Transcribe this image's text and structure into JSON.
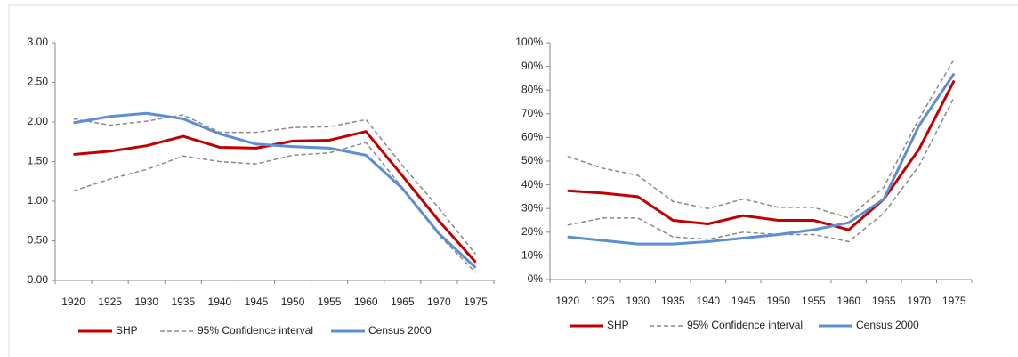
{
  "chart_data": [
    {
      "type": "line",
      "categories": [
        "1920",
        "1925",
        "1930",
        "1935",
        "1940",
        "1945",
        "1950",
        "1955",
        "1960",
        "1965",
        "1970",
        "1975"
      ],
      "ylim": [
        0,
        3
      ],
      "yticks": [
        {
          "value": 0,
          "label": "0.00"
        },
        {
          "value": 0.5,
          "label": "0.50"
        },
        {
          "value": 1,
          "label": "1.00"
        },
        {
          "value": 1.5,
          "label": "1.50"
        },
        {
          "value": 2,
          "label": "2.00"
        },
        {
          "value": 2.5,
          "label": "2.50"
        },
        {
          "value": 3,
          "label": "3.00"
        }
      ],
      "series": [
        {
          "name": "SHP",
          "color": "#c00000",
          "values": [
            1.59,
            1.63,
            1.7,
            1.82,
            1.68,
            1.67,
            1.76,
            1.77,
            1.88,
            1.32,
            0.75,
            0.23
          ]
        },
        {
          "name": "95% Confidence interval",
          "color": "#888888",
          "upper": [
            2.04,
            1.96,
            2.01,
            2.09,
            1.87,
            1.87,
            1.93,
            1.94,
            2.03,
            1.45,
            0.91,
            0.33
          ],
          "lower": [
            1.13,
            1.28,
            1.4,
            1.57,
            1.5,
            1.47,
            1.58,
            1.61,
            1.74,
            1.17,
            0.57,
            0.1
          ]
        },
        {
          "name": "Census 2000",
          "color": "#5b8fd1",
          "values": [
            1.99,
            2.07,
            2.11,
            2.04,
            1.85,
            1.72,
            1.69,
            1.67,
            1.58,
            1.16,
            0.59,
            0.16
          ]
        }
      ]
    },
    {
      "type": "line",
      "categories": [
        "1920",
        "1925",
        "1930",
        "1935",
        "1940",
        "1945",
        "1950",
        "1955",
        "1960",
        "1965",
        "1970",
        "1975"
      ],
      "ylim": [
        0,
        100
      ],
      "yticks": [
        {
          "value": 0,
          "label": "0%"
        },
        {
          "value": 10,
          "label": "10%"
        },
        {
          "value": 20,
          "label": "20%"
        },
        {
          "value": 30,
          "label": "30%"
        },
        {
          "value": 40,
          "label": "40%"
        },
        {
          "value": 50,
          "label": "50%"
        },
        {
          "value": 60,
          "label": "60%"
        },
        {
          "value": 70,
          "label": "70%"
        },
        {
          "value": 80,
          "label": "80%"
        },
        {
          "value": 90,
          "label": "90%"
        },
        {
          "value": 100,
          "label": "100%"
        }
      ],
      "series": [
        {
          "name": "SHP",
          "color": "#c00000",
          "values": [
            37.5,
            36.5,
            35,
            25,
            23.5,
            27,
            25,
            25,
            21,
            34,
            55,
            84
          ]
        },
        {
          "name": "95% Confidence interval",
          "color": "#888888",
          "upper": [
            52,
            47,
            44,
            33,
            30,
            34,
            30.5,
            30.5,
            26,
            39,
            68,
            93
          ],
          "lower": [
            23,
            26,
            26,
            18,
            17,
            20,
            19,
            19,
            16,
            28,
            48,
            77
          ]
        },
        {
          "name": "Census 2000",
          "color": "#5b8fd1",
          "values": [
            18,
            16.5,
            15,
            15,
            16,
            17.5,
            19,
            21,
            24,
            34,
            65,
            87
          ]
        }
      ]
    }
  ]
}
